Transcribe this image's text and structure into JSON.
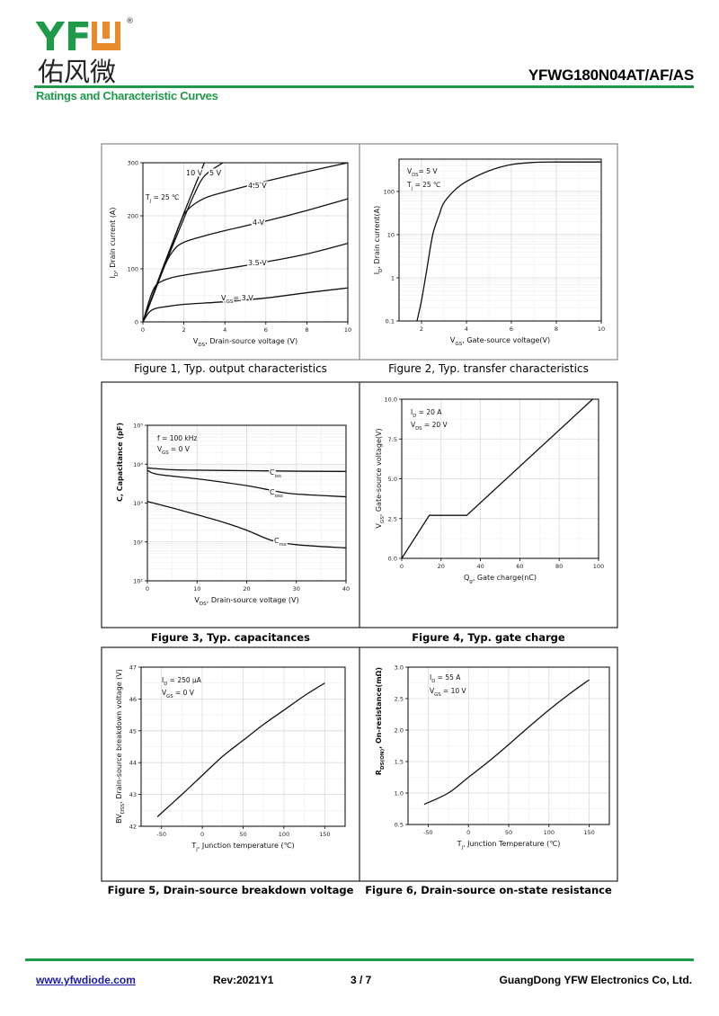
{
  "header": {
    "logo_text": "YFW",
    "logo_cn": "佑风微",
    "part_number": "YFWG180N04AT/AF/AS",
    "section_title": "Ratings and Characteristic Curves",
    "brand_green": "#1f9a4b",
    "brand_orange": "#e98a2c"
  },
  "footer": {
    "url": "www.yfwdiode.com",
    "revision": "Rev:2021Y1",
    "page": "3 / 7",
    "company": "GuangDong YFW Electronics Co, Ltd."
  },
  "chart_data": [
    {
      "type": "line",
      "title": "Figure 1, Typ. output characteristics",
      "xlabel": [
        "V",
        {
          "sub": "DS"
        },
        ", Drain-source voltage (V)"
      ],
      "ylabel": [
        "I",
        {
          "sub": "D"
        },
        ", Drain current (A)"
      ],
      "xlim": [
        0,
        10
      ],
      "ylim": [
        0,
        300
      ],
      "yscale": "linear",
      "grid": true,
      "xticks": [
        0,
        2,
        4,
        6,
        8,
        10
      ],
      "xtick_labels": [
        "0",
        "2",
        "4",
        "6",
        "8",
        "10"
      ],
      "yticks": [
        0,
        100,
        200,
        300
      ],
      "ytick_labels": [
        "0",
        "100",
        "200",
        "300"
      ],
      "annotations": [
        [
          "T",
          {
            "sub": "j"
          },
          " = 25 ℃"
        ]
      ],
      "series": [
        {
          "name": "10 V",
          "label": [
            "10 V"
          ],
          "points": [
            [
              0,
              0
            ],
            [
              1,
              105
            ],
            [
              2,
              205
            ],
            [
              3,
              300
            ]
          ]
        },
        {
          "name": "5 V",
          "label": [
            "5 V"
          ],
          "points": [
            [
              0,
              0
            ],
            [
              1,
              100
            ],
            [
              2,
              195
            ],
            [
              2.5,
              240
            ],
            [
              3,
              275
            ],
            [
              3.9,
              300
            ]
          ]
        },
        {
          "name": "4.5 V",
          "label": [
            "4.5 V"
          ],
          "points": [
            [
              0,
              0
            ],
            [
              1,
              100
            ],
            [
              1.8,
              185
            ],
            [
              2.2,
              212
            ],
            [
              3,
              233
            ],
            [
              4,
              245
            ],
            [
              6,
              265
            ],
            [
              8,
              283
            ],
            [
              10,
              300
            ]
          ]
        },
        {
          "name": "4 V",
          "label": [
            "4 V"
          ],
          "points": [
            [
              0,
              0
            ],
            [
              1,
              100
            ],
            [
              1.5,
              135
            ],
            [
              2,
              150
            ],
            [
              3,
              162
            ],
            [
              4,
              172
            ],
            [
              6,
              190
            ],
            [
              8,
              210
            ],
            [
              10,
              232
            ]
          ]
        },
        {
          "name": "3.5 V",
          "label": [
            "3.5 V"
          ],
          "points": [
            [
              0,
              0
            ],
            [
              0.5,
              60
            ],
            [
              1,
              78
            ],
            [
              2,
              88
            ],
            [
              4,
              100
            ],
            [
              6,
              113
            ],
            [
              8,
              128
            ],
            [
              10,
              148
            ]
          ]
        },
        {
          "name": "VGS = 3 V",
          "label": [
            "V",
            {
              "sub": "GS"
            },
            "= 3 V"
          ],
          "points": [
            [
              0,
              0
            ],
            [
              0.3,
              18
            ],
            [
              0.6,
              25
            ],
            [
              1,
              28
            ],
            [
              2,
              33
            ],
            [
              4,
              38
            ],
            [
              6,
              45
            ],
            [
              8,
              55
            ],
            [
              10,
              64
            ]
          ]
        }
      ]
    },
    {
      "type": "line",
      "title": "Figure 2, Typ. transfer characteristics",
      "xlabel": [
        "V",
        {
          "sub": "GS"
        },
        ", Gate-source voltage(V)"
      ],
      "ylabel": [
        "I",
        {
          "sub": "D"
        },
        ", Drain current(A)"
      ],
      "xlim": [
        1,
        10
      ],
      "ylim": [
        0.1,
        560
      ],
      "yscale": "log",
      "grid": true,
      "xticks": [
        2,
        4,
        6,
        8,
        10
      ],
      "xtick_labels": [
        "2",
        "4",
        "6",
        "8",
        "10"
      ],
      "yticks": [
        0.1,
        1,
        10,
        100
      ],
      "ytick_labels": [
        "0.1",
        "1",
        "10",
        "100"
      ],
      "annotations": [
        [
          "V",
          {
            "sub": "DS"
          },
          "= 5 V"
        ],
        [
          "T",
          {
            "sub": "j"
          },
          " = 25 ℃"
        ]
      ],
      "series": [
        {
          "name": "ID",
          "label": [],
          "points": [
            [
              1.8,
              0.1
            ],
            [
              2,
              0.3
            ],
            [
              2.2,
              1.2
            ],
            [
              2.5,
              10
            ],
            [
              2.8,
              30
            ],
            [
              3,
              55
            ],
            [
              3.5,
              110
            ],
            [
              4,
              170
            ],
            [
              5,
              300
            ],
            [
              6,
              420
            ],
            [
              7,
              470
            ],
            [
              8,
              480
            ],
            [
              10,
              480
            ]
          ]
        }
      ]
    },
    {
      "type": "line",
      "title": "Figure 3, Typ. capacitances",
      "xlabel": [
        "V",
        {
          "sub": "DS"
        },
        ", Drain-source voltage (V)"
      ],
      "ylabel": [
        "C, Capacitance (pF)"
      ],
      "xlim": [
        0,
        40
      ],
      "ylim": [
        10,
        100000
      ],
      "yscale": "log",
      "grid": true,
      "xticks": [
        0,
        10,
        20,
        30,
        40
      ],
      "xtick_labels": [
        "0",
        "10",
        "20",
        "30",
        "40"
      ],
      "yticks": [
        10,
        100,
        1000,
        10000,
        100000
      ],
      "ytick_labels": [
        "10¹",
        "10²",
        "10³",
        "10⁴",
        "10⁵"
      ],
      "annotations": [
        [
          "f = 100 kHz"
        ],
        [
          "V",
          {
            "sub": "GS"
          },
          " = 0 V"
        ]
      ],
      "series": [
        {
          "name": "Ciss",
          "label": [
            "C",
            {
              "sub": "iss"
            }
          ],
          "points": [
            [
              0,
              8000
            ],
            [
              5,
              7200
            ],
            [
              10,
              7000
            ],
            [
              20,
              6800
            ],
            [
              30,
              6600
            ],
            [
              40,
              6500
            ]
          ]
        },
        {
          "name": "Coss",
          "label": [
            "C",
            {
              "sub": "oss"
            }
          ],
          "points": [
            [
              0,
              7000
            ],
            [
              2,
              5500
            ],
            [
              10,
              4200
            ],
            [
              20,
              2800
            ],
            [
              26,
              2000
            ],
            [
              30,
              1700
            ],
            [
              40,
              1450
            ]
          ]
        },
        {
          "name": "Crss",
          "label": [
            "C",
            {
              "sub": "rss"
            }
          ],
          "points": [
            [
              0,
              1100
            ],
            [
              5,
              750
            ],
            [
              10,
              500
            ],
            [
              15,
              330
            ],
            [
              20,
              200
            ],
            [
              25,
              110
            ],
            [
              30,
              85
            ],
            [
              40,
              70
            ]
          ]
        }
      ]
    },
    {
      "type": "line",
      "title": "Figure 4, Typ. gate charge",
      "xlabel": [
        "Q",
        {
          "sub": "g"
        },
        ", Gate charge(nC)"
      ],
      "ylabel": [
        "V",
        {
          "sub": "GS"
        },
        ", Gate-source voltage(V)"
      ],
      "xlim": [
        0,
        100
      ],
      "ylim": [
        0,
        10
      ],
      "yscale": "linear",
      "grid": true,
      "xticks": [
        0,
        20,
        40,
        60,
        80,
        100
      ],
      "xtick_labels": [
        "0",
        "20",
        "40",
        "60",
        "80",
        "100"
      ],
      "yticks": [
        0,
        2.5,
        5,
        7.5,
        10
      ],
      "ytick_labels": [
        "0.0",
        "2.5",
        "5.0",
        "7.5",
        "10.0"
      ],
      "annotations": [
        [
          "I",
          {
            "sub": "D"
          },
          "  = 20 A"
        ],
        [
          "V",
          {
            "sub": "DS"
          },
          " = 20 V"
        ]
      ],
      "series": [
        {
          "name": "VGS",
          "label": [],
          "points": [
            [
              0,
              0
            ],
            [
              14,
              2.7
            ],
            [
              33,
              2.7
            ],
            [
              97,
              10
            ]
          ]
        }
      ]
    },
    {
      "type": "line",
      "title": "Figure 5, Drain-source breakdown voltage",
      "xlabel": [
        "T",
        {
          "sub": "j"
        },
        ", Junction temperature (℃)"
      ],
      "ylabel": [
        "BV",
        {
          "sub": "DSS"
        },
        ", Drain-source breakdown voltage (V)"
      ],
      "xlim": [
        -75,
        175
      ],
      "ylim": [
        42,
        47
      ],
      "yscale": "linear",
      "grid": true,
      "xticks": [
        -50,
        0,
        50,
        100,
        150
      ],
      "xtick_labels": [
        "-50",
        "0",
        "50",
        "100",
        "150"
      ],
      "yticks": [
        42,
        43,
        44,
        45,
        46,
        47
      ],
      "ytick_labels": [
        "42",
        "43",
        "44",
        "45",
        "46",
        "47"
      ],
      "annotations": [
        [
          "I",
          {
            "sub": "D"
          },
          " = 250 μA"
        ],
        [
          "V",
          {
            "sub": "GS"
          },
          " = 0 V"
        ]
      ],
      "series": [
        {
          "name": "BVDSS",
          "label": [],
          "points": [
            [
              -55,
              42.3
            ],
            [
              -25,
              43
            ],
            [
              0,
              43.6
            ],
            [
              25,
              44.2
            ],
            [
              50,
              44.7
            ],
            [
              75,
              45.2
            ],
            [
              100,
              45.65
            ],
            [
              125,
              46.1
            ],
            [
              150,
              46.5
            ]
          ]
        }
      ]
    },
    {
      "type": "line",
      "title": "Figure 6, Drain-source on-state resistance",
      "xlabel": [
        "T",
        {
          "sub": "j"
        },
        ", Junction Temperature (℃)"
      ],
      "ylabel": [
        "R",
        {
          "sub": "DS(ON)"
        },
        ", On-resistance(mΩ)"
      ],
      "xlim": [
        -75,
        175
      ],
      "ylim": [
        0.5,
        3.0
      ],
      "yscale": "linear",
      "grid": true,
      "xticks": [
        -50,
        0,
        50,
        100,
        150
      ],
      "xtick_labels": [
        "-50",
        "0",
        "50",
        "100",
        "150"
      ],
      "yticks": [
        0.5,
        1.0,
        1.5,
        2.0,
        2.5,
        3.0
      ],
      "ytick_labels": [
        "0.5",
        "1.0",
        "1.5",
        "2.0",
        "2.5",
        "3.0"
      ],
      "annotations": [
        [
          "I",
          {
            "sub": "D"
          },
          " = 55 A"
        ],
        [
          "V",
          {
            "sub": "GS"
          },
          " = 10 V"
        ]
      ],
      "series": [
        {
          "name": "RDS(ON)",
          "label": [],
          "points": [
            [
              -55,
              0.82
            ],
            [
              -25,
              1.0
            ],
            [
              0,
              1.25
            ],
            [
              25,
              1.5
            ],
            [
              50,
              1.77
            ],
            [
              75,
              2.05
            ],
            [
              100,
              2.32
            ],
            [
              125,
              2.57
            ],
            [
              150,
              2.8
            ]
          ]
        }
      ]
    }
  ]
}
